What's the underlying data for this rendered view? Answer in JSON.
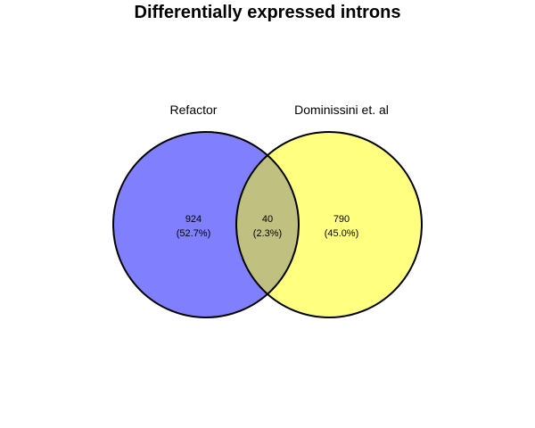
{
  "title": "Differentially expressed introns",
  "sets": [
    {
      "name": "Refactor",
      "color": "#8080ff"
    },
    {
      "name": "Dominissini et. al",
      "color": "#ffff80"
    }
  ],
  "overlap_color": "#c0c080",
  "outline_color": "#000000",
  "regions": {
    "left_only": {
      "count": "924",
      "percent": "(52.7%)"
    },
    "both": {
      "count": "40",
      "percent": "(2.3%)"
    },
    "right_only": {
      "count": "790",
      "percent": "(45.0%)"
    }
  }
}
